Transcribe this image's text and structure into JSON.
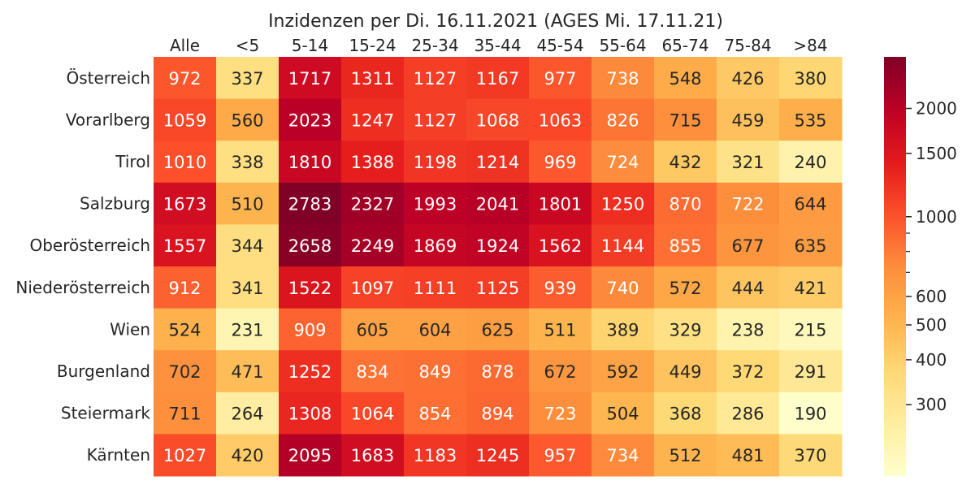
{
  "chart_data": {
    "type": "heatmap",
    "title": "Inzidenzen per Di. 16.11.2021 (AGES Mi. 17.11.21)",
    "columns": [
      "Alle",
      "<5",
      "5-14",
      "15-24",
      "25-34",
      "35-44",
      "45-54",
      "55-64",
      "65-74",
      "75-84",
      ">84"
    ],
    "rows": [
      "Österreich",
      "Vorarlberg",
      "Tirol",
      "Salzburg",
      "Oberösterreich",
      "Niederösterreich",
      "Wien",
      "Burgenland",
      "Steiermark",
      "Kärnten"
    ],
    "values": [
      [
        972,
        337,
        1717,
        1311,
        1127,
        1167,
        977,
        738,
        548,
        426,
        380
      ],
      [
        1059,
        560,
        2023,
        1247,
        1127,
        1068,
        1063,
        826,
        715,
        459,
        535
      ],
      [
        1010,
        338,
        1810,
        1388,
        1198,
        1214,
        969,
        724,
        432,
        321,
        240
      ],
      [
        1673,
        510,
        2783,
        2327,
        1993,
        2041,
        1801,
        1250,
        870,
        722,
        644
      ],
      [
        1557,
        344,
        2658,
        2249,
        1869,
        1924,
        1562,
        1144,
        855,
        677,
        635
      ],
      [
        912,
        341,
        1522,
        1097,
        1111,
        1125,
        939,
        740,
        572,
        444,
        421
      ],
      [
        524,
        231,
        909,
        605,
        604,
        625,
        511,
        389,
        329,
        238,
        215
      ],
      [
        702,
        471,
        1252,
        834,
        849,
        878,
        672,
        592,
        449,
        372,
        291
      ],
      [
        711,
        264,
        1308,
        1064,
        854,
        894,
        723,
        504,
        368,
        286,
        190
      ],
      [
        1027,
        420,
        2095,
        1683,
        1183,
        1245,
        957,
        734,
        512,
        481,
        370
      ]
    ],
    "colormap": "YlOrRd",
    "scale": "log",
    "colorbar": {
      "ticks": [
        300,
        400,
        500,
        600,
        1000,
        1500,
        2000
      ],
      "tick_labels": [
        "300",
        "400",
        "500",
        "600",
        "1000",
        "1500",
        "2000"
      ],
      "minor_ticks": [
        700,
        800,
        900
      ],
      "range": [
        190,
        2783
      ]
    }
  }
}
